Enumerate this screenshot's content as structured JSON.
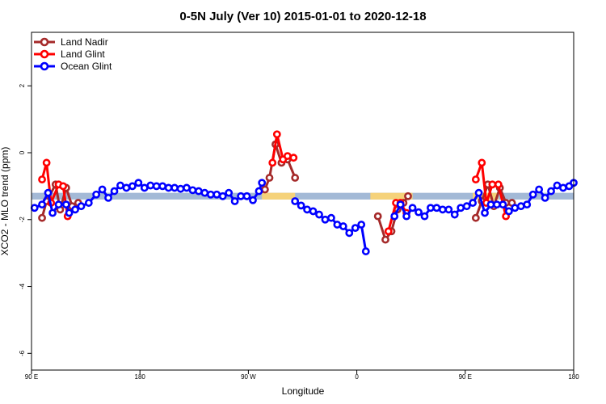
{
  "chart_data": {
    "type": "line",
    "title": "0-5N July (Ver 10)   2015-01-01 to 2020-12-18",
    "xlabel": "Longitude",
    "ylabel": "XCO2 - MLO trend (ppm)",
    "xlim": [
      0,
      360
    ],
    "ylim": [
      -6.5,
      3.6
    ],
    "x_ticks": [
      {
        "value": 0,
        "label": "90 E"
      },
      {
        "value": 72,
        "label": "180"
      },
      {
        "value": 144,
        "label": "90 W"
      },
      {
        "value": 216,
        "label": "0"
      },
      {
        "value": 288,
        "label": "90 E"
      },
      {
        "value": 360,
        "label": "180"
      }
    ],
    "y_ticks": [
      {
        "value": 2,
        "label": "2"
      },
      {
        "value": 0,
        "label": "0"
      },
      {
        "value": -2,
        "label": "-2"
      },
      {
        "value": -4,
        "label": "-4"
      },
      {
        "value": -6,
        "label": "-6"
      }
    ],
    "legend_position": "top-left",
    "background_band": {
      "y_range": [
        -1.4,
        -1.2
      ],
      "base_color": "#a3b9d6",
      "land_color": "#f5d27a",
      "land_x_ranges": [
        [
          153,
          175
        ],
        [
          225,
          253
        ],
        [
          293,
          310
        ]
      ]
    },
    "series": [
      {
        "name": "Land Nadir",
        "color": "#a52a2a",
        "segments": [
          [
            [
              7,
              -1.95
            ],
            [
              10,
              -1.45
            ],
            [
              16,
              -0.95
            ],
            [
              19,
              -1.7
            ],
            [
              23,
              -1.05
            ],
            [
              27,
              -1.6
            ],
            [
              31,
              -1.5
            ]
          ],
          [
            [
              155,
              -1.1
            ],
            [
              158,
              -0.75
            ],
            [
              162,
              0.25
            ],
            [
              166,
              -0.3
            ],
            [
              170,
              -0.2
            ],
            [
              175,
              -0.75
            ]
          ],
          [
            [
              230,
              -1.9
            ],
            [
              235,
              -2.6
            ],
            [
              239,
              -2.35
            ],
            [
              243,
              -1.7
            ],
            [
              247,
              -1.5
            ],
            [
              250,
              -1.3
            ]
          ],
          [
            [
              295,
              -1.95
            ],
            [
              299,
              -1.45
            ],
            [
              303,
              -0.95
            ],
            [
              307,
              -1.6
            ],
            [
              311,
              -1.05
            ],
            [
              315,
              -1.5
            ],
            [
              319,
              -1.5
            ]
          ]
        ]
      },
      {
        "name": "Land Glint",
        "color": "#ff0000",
        "segments": [
          [
            [
              7,
              -0.8
            ],
            [
              10,
              -0.3
            ],
            [
              13,
              -1.5
            ],
            [
              18,
              -0.95
            ],
            [
              21,
              -1.0
            ],
            [
              24,
              -1.9
            ]
          ],
          [
            [
              160,
              -0.3
            ],
            [
              163,
              0.55
            ],
            [
              167,
              -0.2
            ],
            [
              170,
              -0.1
            ],
            [
              174,
              -0.15
            ]
          ],
          [
            [
              237,
              -2.35
            ],
            [
              242,
              -1.5
            ],
            [
              245,
              -1.5
            ],
            [
              249,
              -1.8
            ]
          ],
          [
            [
              295,
              -0.8
            ],
            [
              299,
              -0.3
            ],
            [
              302,
              -1.5
            ],
            [
              306,
              -0.95
            ],
            [
              310,
              -0.95
            ],
            [
              315,
              -1.9
            ]
          ]
        ]
      },
      {
        "name": "Ocean Glint",
        "color": "#0000ff",
        "segments": [
          [
            [
              2,
              -1.65
            ],
            [
              7,
              -1.55
            ],
            [
              11,
              -1.2
            ],
            [
              14,
              -1.8
            ],
            [
              18,
              -1.55
            ],
            [
              23,
              -1.55
            ],
            [
              25,
              -1.8
            ],
            [
              29,
              -1.7
            ],
            [
              33,
              -1.6
            ],
            [
              38,
              -1.5
            ],
            [
              43,
              -1.25
            ],
            [
              47,
              -1.1
            ],
            [
              51,
              -1.35
            ],
            [
              55,
              -1.15
            ],
            [
              59,
              -0.98
            ],
            [
              63,
              -1.05
            ],
            [
              67,
              -1.0
            ],
            [
              71,
              -0.9
            ],
            [
              75,
              -1.05
            ],
            [
              79,
              -0.98
            ],
            [
              83,
              -1.0
            ],
            [
              87,
              -1.0
            ],
            [
              91,
              -1.05
            ],
            [
              95,
              -1.05
            ],
            [
              99,
              -1.08
            ],
            [
              103,
              -1.05
            ],
            [
              107,
              -1.12
            ],
            [
              111,
              -1.15
            ],
            [
              115,
              -1.2
            ],
            [
              119,
              -1.25
            ],
            [
              123,
              -1.25
            ],
            [
              127,
              -1.3
            ],
            [
              131,
              -1.2
            ],
            [
              135,
              -1.45
            ],
            [
              139,
              -1.3
            ],
            [
              143,
              -1.3
            ],
            [
              147,
              -1.42
            ],
            [
              151,
              -1.15
            ],
            [
              153,
              -0.9
            ]
          ],
          [
            [
              175,
              -1.45
            ],
            [
              179,
              -1.58
            ],
            [
              183,
              -1.7
            ],
            [
              187,
              -1.75
            ],
            [
              191,
              -1.85
            ],
            [
              195,
              -2.0
            ],
            [
              199,
              -1.95
            ],
            [
              203,
              -2.15
            ],
            [
              207,
              -2.2
            ],
            [
              211,
              -2.4
            ],
            [
              215,
              -2.25
            ],
            [
              219,
              -2.15
            ],
            [
              222,
              -2.95
            ]
          ],
          [
            [
              241,
              -1.9
            ],
            [
              245,
              -1.55
            ],
            [
              249,
              -1.9
            ],
            [
              253,
              -1.65
            ],
            [
              257,
              -1.78
            ],
            [
              261,
              -1.9
            ],
            [
              265,
              -1.65
            ],
            [
              269,
              -1.65
            ],
            [
              273,
              -1.7
            ],
            [
              277,
              -1.7
            ],
            [
              281,
              -1.85
            ],
            [
              285,
              -1.65
            ],
            [
              289,
              -1.6
            ],
            [
              293,
              -1.5
            ],
            [
              297,
              -1.2
            ],
            [
              301,
              -1.8
            ],
            [
              305,
              -1.55
            ],
            [
              309,
              -1.55
            ],
            [
              313,
              -1.55
            ],
            [
              317,
              -1.75
            ],
            [
              321,
              -1.65
            ],
            [
              325,
              -1.6
            ],
            [
              329,
              -1.55
            ],
            [
              333,
              -1.25
            ],
            [
              337,
              -1.1
            ],
            [
              341,
              -1.35
            ],
            [
              345,
              -1.15
            ],
            [
              349,
              -0.98
            ],
            [
              353,
              -1.05
            ],
            [
              357,
              -1.0
            ],
            [
              360,
              -0.9
            ]
          ]
        ]
      }
    ]
  }
}
